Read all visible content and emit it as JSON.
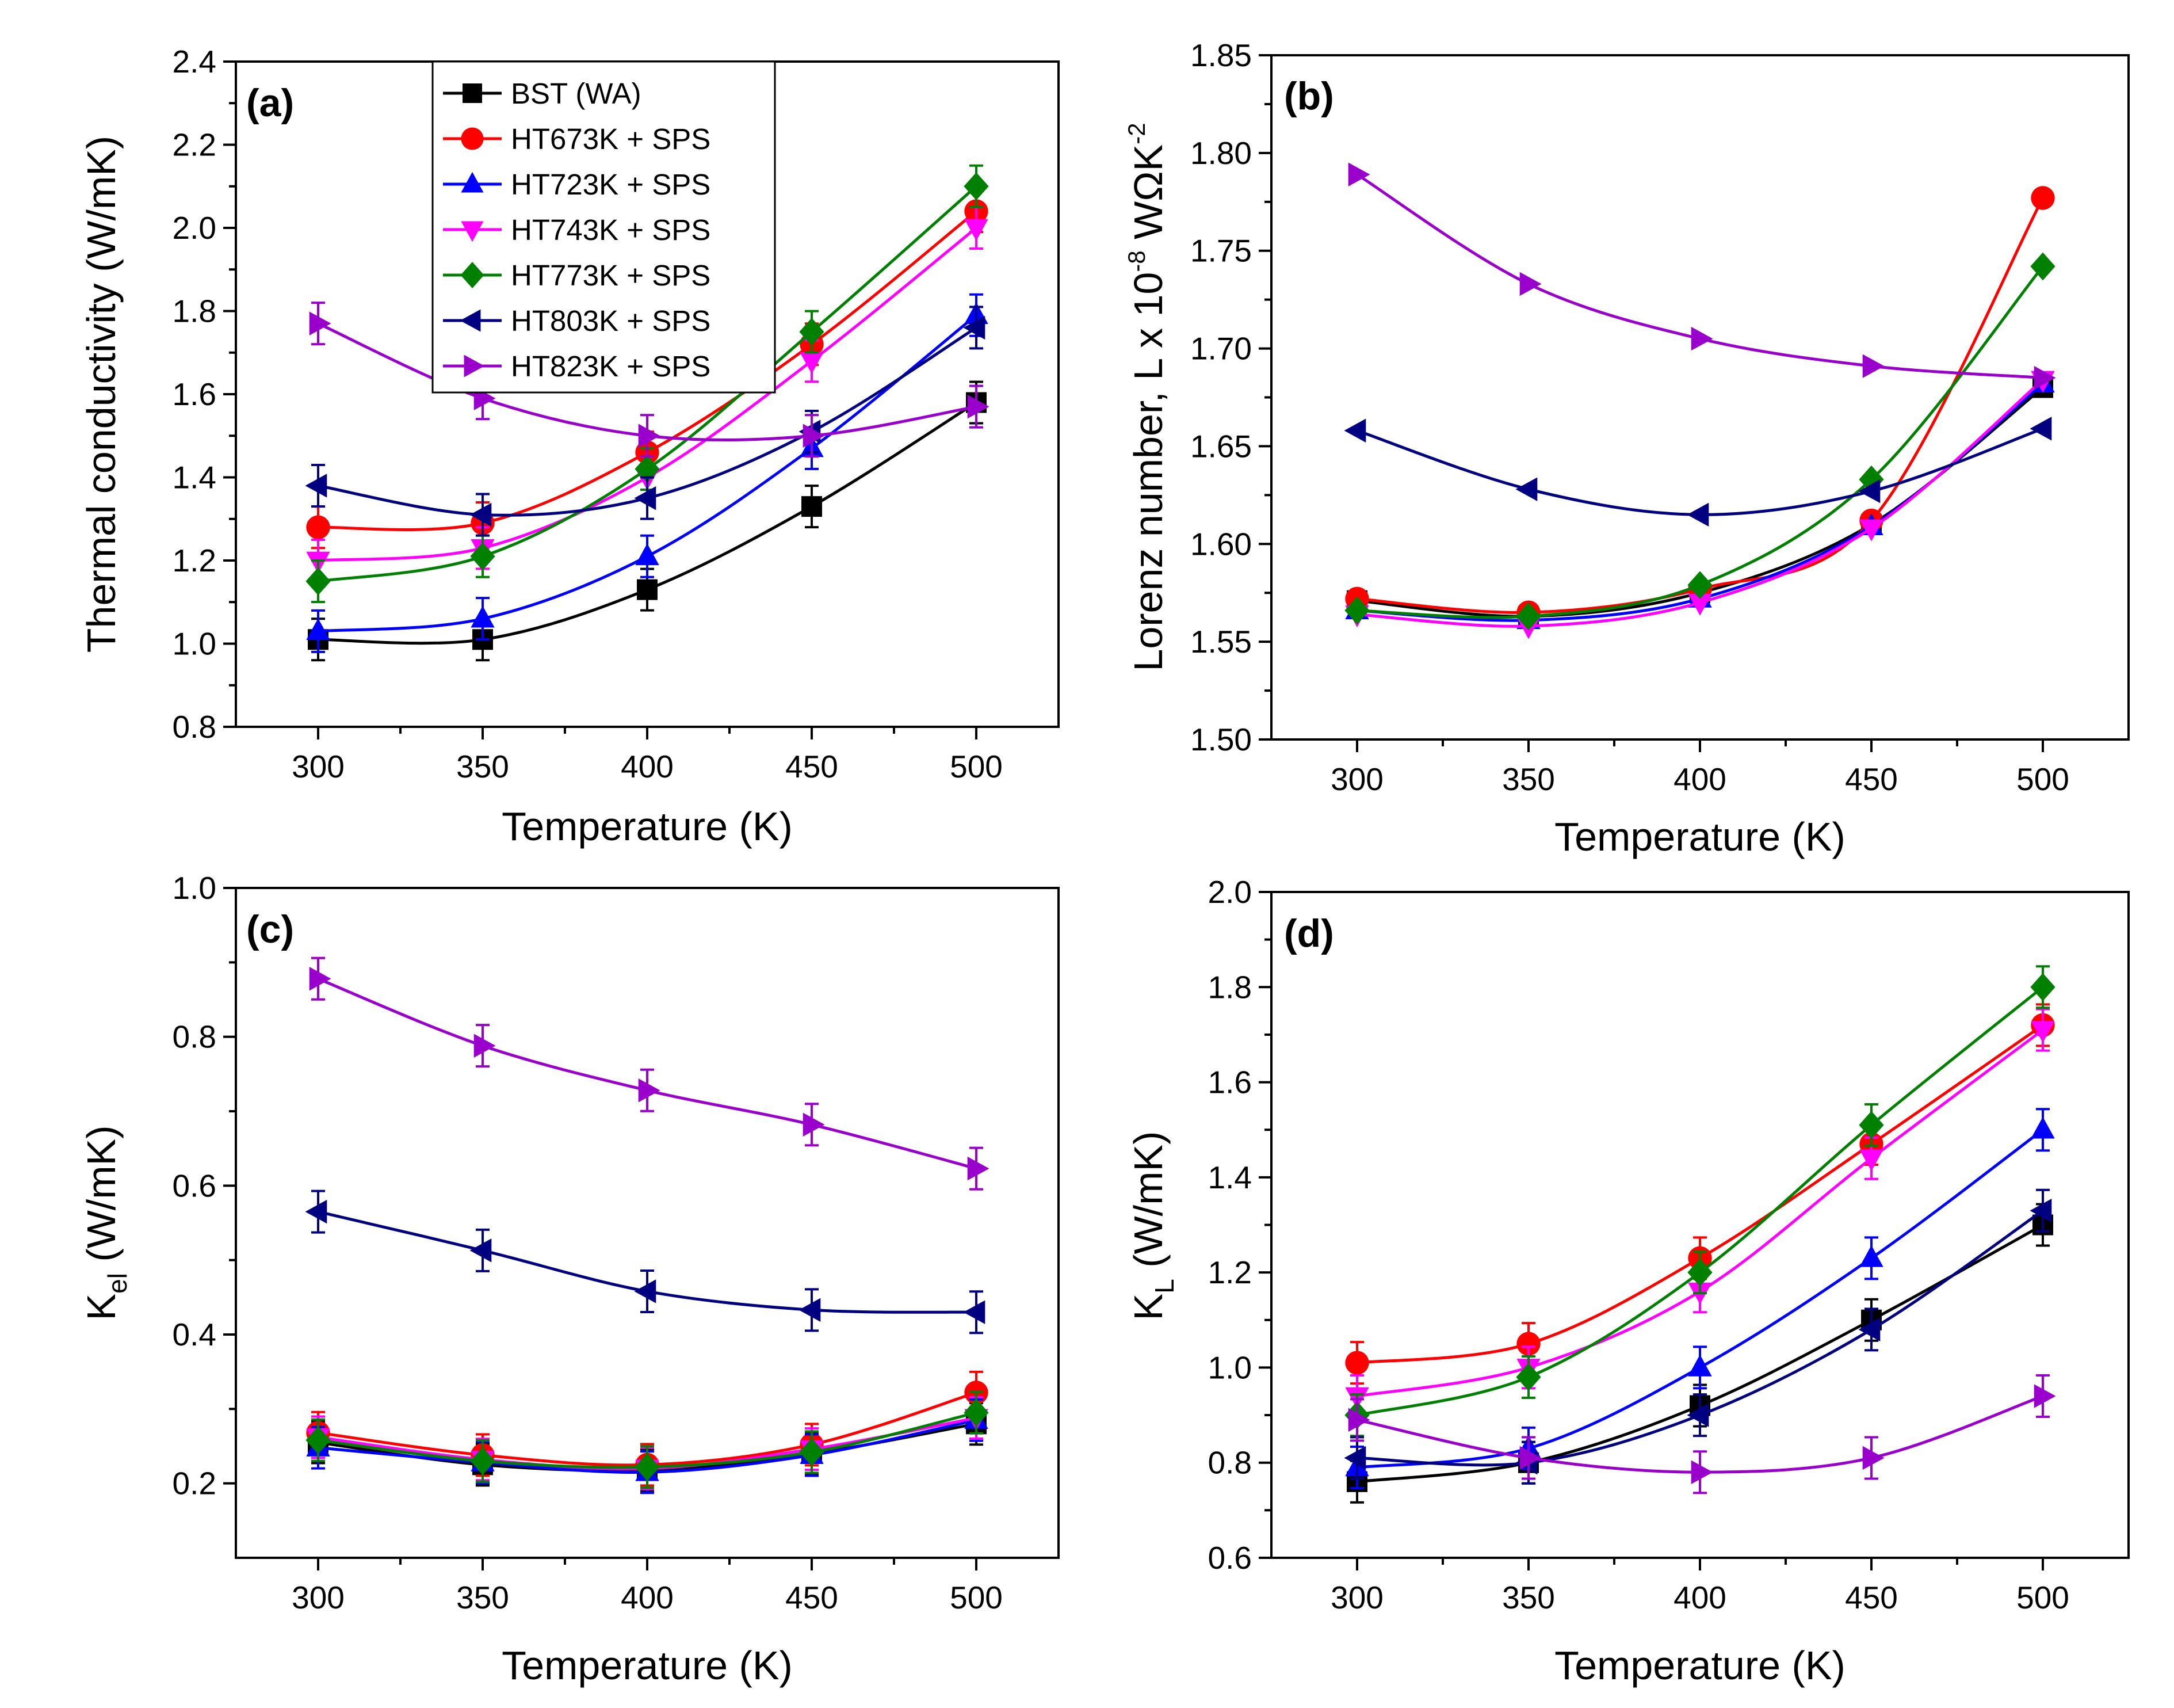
{
  "chart_data": [
    {
      "type": "line",
      "panel_label": "(a)",
      "title": "",
      "xlabel": "Temperature (K)",
      "ylabel": "Thermal conductivity (W/mK)",
      "xlim": [
        275,
        525
      ],
      "ylim": [
        0.8,
        2.4
      ],
      "xticks": [
        300,
        350,
        400,
        450,
        500
      ],
      "xtick_labels": [
        "300",
        "350",
        "400",
        "450",
        "500"
      ],
      "yticks": [
        0.8,
        1.0,
        1.2,
        1.4,
        1.6,
        1.8,
        2.0,
        2.2,
        2.4
      ],
      "ytick_labels": [
        "0.8",
        "1.0",
        "1.2",
        "1.4",
        "1.6",
        "1.8",
        "2.0",
        "2.2",
        "2.4"
      ],
      "x": [
        300,
        350,
        400,
        450,
        500
      ],
      "error_bars": true,
      "legend": "top-center",
      "series": [
        {
          "name": "BST (WA)",
          "values": [
            1.01,
            1.01,
            1.13,
            1.33,
            1.58
          ]
        },
        {
          "name": "HT673K + SPS",
          "values": [
            1.28,
            1.29,
            1.46,
            1.72,
            2.04
          ]
        },
        {
          "name": "HT723K + SPS",
          "values": [
            1.03,
            1.06,
            1.21,
            1.47,
            1.79
          ]
        },
        {
          "name": "HT743K + SPS",
          "values": [
            1.2,
            1.23,
            1.4,
            1.68,
            2.0
          ]
        },
        {
          "name": "HT773K + SPS",
          "values": [
            1.15,
            1.21,
            1.42,
            1.75,
            2.1
          ]
        },
        {
          "name": "HT803K + SPS",
          "values": [
            1.38,
            1.31,
            1.35,
            1.51,
            1.76
          ]
        },
        {
          "name": "HT823K + SPS",
          "values": [
            1.77,
            1.59,
            1.5,
            1.5,
            1.57
          ]
        }
      ]
    },
    {
      "type": "line",
      "panel_label": "(b)",
      "title": "",
      "xlabel": "Temperature (K)",
      "ylabel": "Lorenz number, L x 10⁻⁸ WΩK⁻²",
      "ylabel_main": "Lorenz number, L x 10",
      "ylabel_exp1": "-8",
      "ylabel_unit": " WΩK",
      "ylabel_exp2": "-2",
      "xlim": [
        275,
        525
      ],
      "ylim": [
        1.5,
        1.85
      ],
      "xticks": [
        300,
        350,
        400,
        450,
        500
      ],
      "xtick_labels": [
        "300",
        "350",
        "400",
        "450",
        "500"
      ],
      "yticks": [
        1.5,
        1.55,
        1.6,
        1.65,
        1.7,
        1.75,
        1.8,
        1.85
      ],
      "ytick_labels": [
        "1.50",
        "1.55",
        "1.60",
        "1.65",
        "1.70",
        "1.75",
        "1.80",
        "1.85"
      ],
      "x": [
        300,
        350,
        400,
        450,
        500
      ],
      "error_bars": false,
      "series": [
        {
          "name": "BST (WA)",
          "values": [
            1.571,
            1.563,
            1.575,
            1.61,
            1.68
          ]
        },
        {
          "name": "HT673K + SPS",
          "values": [
            1.572,
            1.565,
            1.577,
            1.612,
            1.777
          ]
        },
        {
          "name": "HT723K + SPS",
          "values": [
            1.566,
            1.561,
            1.572,
            1.609,
            1.682
          ]
        },
        {
          "name": "HT743K + SPS",
          "values": [
            1.564,
            1.558,
            1.57,
            1.608,
            1.684
          ]
        },
        {
          "name": "HT773K + SPS",
          "values": [
            1.566,
            1.563,
            1.579,
            1.633,
            1.742
          ]
        },
        {
          "name": "HT803K + SPS",
          "values": [
            1.658,
            1.628,
            1.615,
            1.627,
            1.659
          ]
        },
        {
          "name": "HT823K + SPS",
          "values": [
            1.789,
            1.733,
            1.705,
            1.691,
            1.685
          ]
        }
      ]
    },
    {
      "type": "line",
      "panel_label": "(c)",
      "title": "",
      "xlabel": "Temperature (K)",
      "ylabel": "K_el (W/mK)",
      "ylabel_main": "K",
      "ylabel_sub": "el",
      "ylabel_unit": " (W/mK)",
      "xlim": [
        275,
        525
      ],
      "ylim": [
        0.1,
        1.0
      ],
      "xticks": [
        300,
        350,
        400,
        450,
        500
      ],
      "xtick_labels": [
        "300",
        "350",
        "400",
        "450",
        "500"
      ],
      "yticks": [
        0.2,
        0.4,
        0.6,
        0.8,
        1.0
      ],
      "ytick_labels": [
        "0.2",
        "0.4",
        "0.6",
        "0.8",
        "1.0"
      ],
      "x": [
        300,
        350,
        400,
        450,
        500
      ],
      "error_bars": true,
      "series": [
        {
          "name": "BST (WA)",
          "values": [
            0.255,
            0.225,
            0.218,
            0.24,
            0.28
          ]
        },
        {
          "name": "HT673K + SPS",
          "values": [
            0.268,
            0.238,
            0.225,
            0.252,
            0.322
          ]
        },
        {
          "name": "HT723K + SPS",
          "values": [
            0.248,
            0.228,
            0.215,
            0.238,
            0.285
          ]
        },
        {
          "name": "HT743K + SPS",
          "values": [
            0.262,
            0.232,
            0.22,
            0.246,
            0.288
          ]
        },
        {
          "name": "HT773K + SPS",
          "values": [
            0.258,
            0.23,
            0.222,
            0.242,
            0.295
          ]
        },
        {
          "name": "HT803K + SPS",
          "values": [
            0.565,
            0.513,
            0.458,
            0.433,
            0.43
          ]
        },
        {
          "name": "HT823K + SPS",
          "values": [
            0.878,
            0.788,
            0.728,
            0.682,
            0.623
          ]
        }
      ]
    },
    {
      "type": "line",
      "panel_label": "(d)",
      "title": "",
      "xlabel": "Temperature (K)",
      "ylabel": "K_L (W/mK)",
      "ylabel_main": "K",
      "ylabel_sub": "L",
      "ylabel_unit": " (W/mK)",
      "xlim": [
        275,
        525
      ],
      "ylim": [
        0.6,
        2.0
      ],
      "xticks": [
        300,
        350,
        400,
        450,
        500
      ],
      "xtick_labels": [
        "300",
        "350",
        "400",
        "450",
        "500"
      ],
      "yticks": [
        0.6,
        0.8,
        1.0,
        1.2,
        1.4,
        1.6,
        1.8,
        2.0
      ],
      "ytick_labels": [
        "0.6",
        "0.8",
        "1.0",
        "1.2",
        "1.4",
        "1.6",
        "1.8",
        "2.0"
      ],
      "x": [
        300,
        350,
        400,
        450,
        500
      ],
      "error_bars": true,
      "series": [
        {
          "name": "BST (WA)",
          "values": [
            0.76,
            0.8,
            0.92,
            1.1,
            1.3
          ]
        },
        {
          "name": "HT673K + SPS",
          "values": [
            1.01,
            1.05,
            1.23,
            1.47,
            1.72
          ]
        },
        {
          "name": "HT723K + SPS",
          "values": [
            0.79,
            0.83,
            1.0,
            1.23,
            1.5
          ]
        },
        {
          "name": "HT743K + SPS",
          "values": [
            0.94,
            1.0,
            1.16,
            1.44,
            1.71
          ]
        },
        {
          "name": "HT773K + SPS",
          "values": [
            0.9,
            0.98,
            1.2,
            1.51,
            1.8
          ]
        },
        {
          "name": "HT803K + SPS",
          "values": [
            0.81,
            0.8,
            0.9,
            1.08,
            1.33
          ]
        },
        {
          "name": "HT823K + SPS",
          "values": [
            0.89,
            0.81,
            0.78,
            0.81,
            0.94
          ]
        }
      ]
    }
  ],
  "series_styles": [
    {
      "color": "#000000",
      "marker": "square"
    },
    {
      "color": "#ff0000",
      "marker": "circle"
    },
    {
      "color": "#0000ff",
      "marker": "triangle-up"
    },
    {
      "color": "#ff00ff",
      "marker": "triangle-down"
    },
    {
      "color": "#008000",
      "marker": "diamond"
    },
    {
      "color": "#000080",
      "marker": "triangle-left"
    },
    {
      "color": "#9900cc",
      "marker": "triangle-right"
    }
  ]
}
